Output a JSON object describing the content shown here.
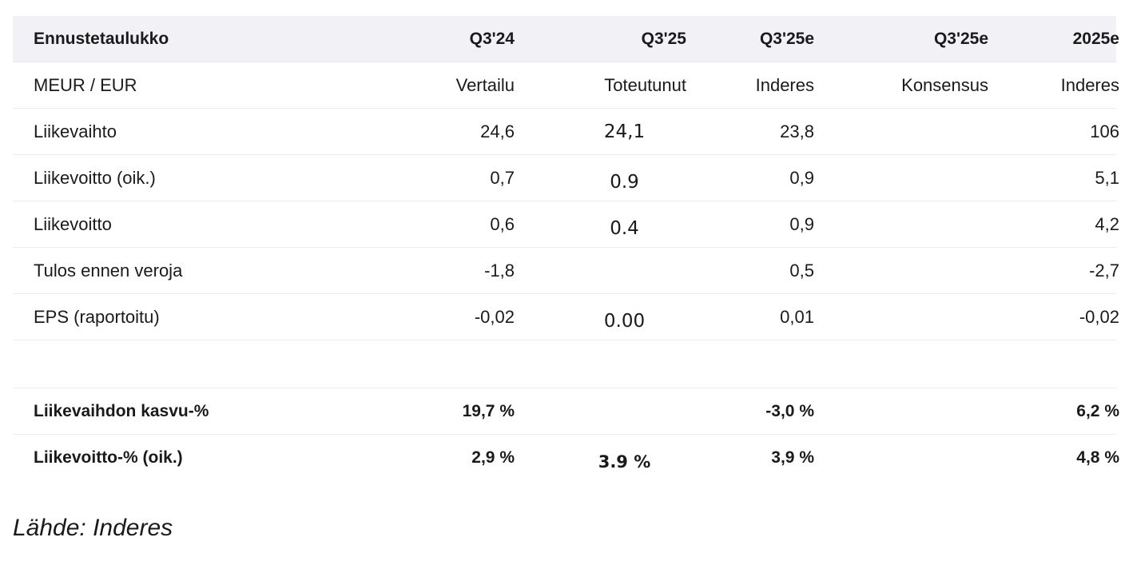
{
  "header": {
    "title": "Ennustetaulukko",
    "cols": [
      "Q3'24",
      "Q3'25",
      "Q3'25e",
      "Q3'25e",
      "2025e"
    ]
  },
  "subheader": {
    "label": "MEUR / EUR",
    "cols": [
      "Vertailu",
      "Toteutunut",
      "Inderes",
      "Konsensus",
      "Inderes"
    ]
  },
  "rows": [
    {
      "label": "Liikevaihto",
      "values": [
        "24,6",
        "24,1",
        "23,8",
        "",
        "106"
      ]
    },
    {
      "label": "Liikevoitto (oik.)",
      "values": [
        "0,7",
        "0.9",
        "0,9",
        "",
        "5,1"
      ]
    },
    {
      "label": "Liikevoitto",
      "values": [
        "0,6",
        "0.4",
        "0,9",
        "",
        "4,2"
      ]
    },
    {
      "label": "Tulos ennen veroja",
      "values": [
        "-1,8",
        "",
        "0,5",
        "",
        "-2,7"
      ]
    },
    {
      "label": "EPS (raportoitu)",
      "values": [
        "-0,02",
        "0.00",
        "0,01",
        "",
        "-0,02"
      ]
    }
  ],
  "growth_rows": [
    {
      "label": "Liikevaihdon kasvu-%",
      "values": [
        "19,7 %",
        "",
        "-3,0 %",
        "",
        "6,2 %"
      ]
    },
    {
      "label": "Liikevoitto-% (oik.)",
      "values": [
        "2,9 %",
        "3.9 %",
        "3,9 %",
        "",
        "4,8 %"
      ]
    }
  ],
  "source": "Lähde: Inderes"
}
